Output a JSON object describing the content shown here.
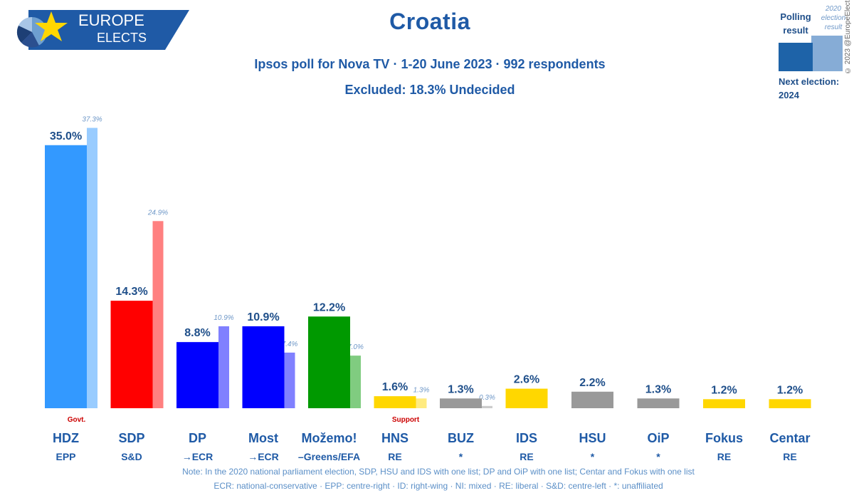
{
  "header": {
    "logo": {
      "line1": "EUROPE",
      "line2": "ELECTS"
    },
    "title": "Croatia",
    "subtitle": "Ipsos poll for Nova TV · 1-20 June 2023 · 992 respondents",
    "excluded": "Excluded: 18.3% Undecided"
  },
  "legend": {
    "poll_label": "Polling result",
    "prev_label": "2020 election result",
    "next_election": "Next election: 2024",
    "copyright": "© 2023 @EuropeElects",
    "poll_color": "#1e63a8",
    "prev_color": "#86acd6"
  },
  "chart_data": {
    "type": "bar",
    "ylim": [
      0,
      40
    ],
    "categories": [
      "HDZ",
      "SDP",
      "DP",
      "Most",
      "Možemo!",
      "HNS",
      "BUZ",
      "IDS",
      "HSU",
      "OiP",
      "Fokus",
      "Centar"
    ],
    "groups": [
      "EPP",
      "S&D",
      "→ECR",
      "→ECR",
      "–Greens/EFA",
      "RE",
      "*",
      "RE",
      "*",
      "*",
      "RE",
      "RE"
    ],
    "series": [
      {
        "name": "Polling result",
        "values": [
          35.0,
          14.3,
          8.8,
          10.9,
          12.2,
          1.6,
          1.3,
          2.6,
          2.2,
          1.3,
          1.2,
          1.2
        ],
        "labels": [
          "35.0%",
          "14.3%",
          "8.8%",
          "10.9%",
          "12.2%",
          "1.6%",
          "1.3%",
          "2.6%",
          "2.2%",
          "1.3%",
          "1.2%",
          "1.2%"
        ]
      },
      {
        "name": "2020 election result",
        "values": [
          37.3,
          24.9,
          10.9,
          7.4,
          7.0,
          1.3,
          0.3,
          null,
          null,
          null,
          null,
          null
        ],
        "labels": [
          "37.3%",
          "24.9%",
          "10.9%",
          "7.4%",
          "7.0%",
          "1.3%",
          "0.3%",
          "",
          "",
          "",
          "",
          ""
        ]
      }
    ],
    "colors": [
      "#3399ff",
      "#ff0000",
      "#0000ff",
      "#0000ff",
      "#009900",
      "#ffd700",
      "#999999",
      "#ffd700",
      "#999999",
      "#999999",
      "#ffd700",
      "#ffd700"
    ],
    "prev_colors": [
      "#99ccff",
      "#ff8080",
      "#8080ff",
      "#8080ff",
      "#80cc80",
      "#ffeb80",
      "#cccccc",
      null,
      null,
      null,
      null,
      null
    ],
    "annotations": {
      "govt": "Govt.",
      "support": "Support"
    }
  },
  "notes": {
    "line1": "Note: In the 2020 national parliament election, SDP, HSU and IDS with one list; DP and OiP with one list; Centar and Fokus with one list",
    "line2": "ECR: national-conservative · EPP: centre-right · ID: right-wing · NI: mixed · RE: liberal · S&D: centre-left · *: unaffiliated"
  }
}
